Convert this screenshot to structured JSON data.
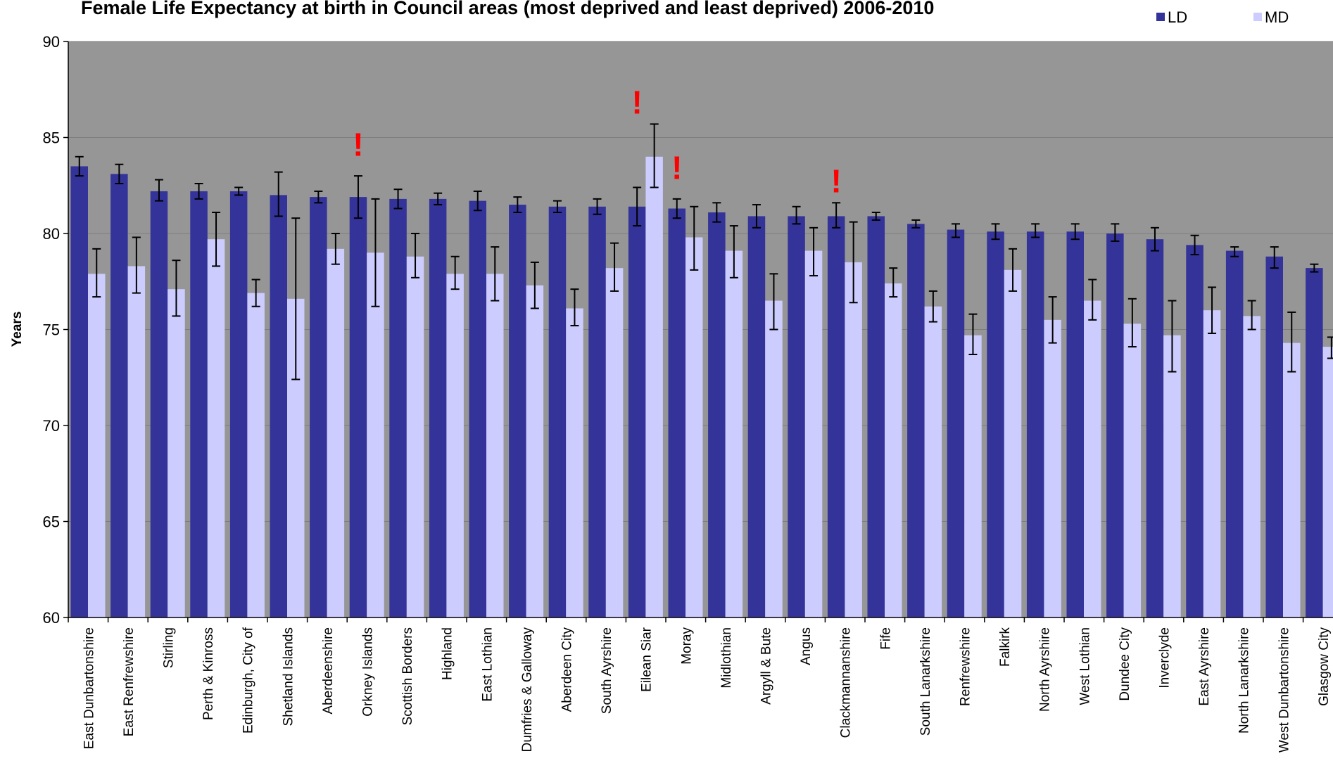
{
  "chart_data": {
    "type": "bar",
    "title": "Female Life Expectancy at birth in Council areas (most deprived and least deprived) 2006-2010",
    "ylabel": "Years",
    "xlabel": "",
    "ylim": [
      60,
      90
    ],
    "yticks": [
      60,
      65,
      70,
      75,
      80,
      85,
      90
    ],
    "grid": true,
    "legend_position": "top-right",
    "colors": {
      "plot_bg": "#969696",
      "LD": "#333399",
      "MD": "#ccccff",
      "grid": "#7f7f7f",
      "flag": "#ff0000"
    },
    "flag_symbol": "!",
    "categories": [
      "East Dunbartonshire",
      "East Renfrewshire",
      "Stirling",
      "Perth & Kinross",
      "Edinburgh, City of",
      "Shetland Islands",
      "Aberdeenshire",
      "Orkney Islands",
      "Scottish Borders",
      "Highland",
      "East Lothian",
      "Dumfries & Galloway",
      "Aberdeen City",
      "South Ayrshire",
      "Eilean Siar",
      "Moray",
      "Midlothian",
      "Argyll & Bute",
      "Angus",
      "Clackmannanshire",
      "Fife",
      "South Lanarkshire",
      "Renfrewshire",
      "Falkirk",
      "North Ayrshire",
      "West Lothian",
      "Dundee City",
      "Inverclyde",
      "East Ayrshire",
      "North Lanarkshire",
      "West Dunbartonshire",
      "Glasgow City"
    ],
    "series": [
      {
        "name": "LD",
        "values": [
          83.5,
          83.1,
          82.2,
          82.2,
          82.2,
          82.0,
          81.9,
          81.9,
          81.8,
          81.8,
          81.7,
          81.5,
          81.4,
          81.4,
          81.4,
          81.3,
          81.1,
          80.9,
          80.9,
          80.9,
          80.9,
          80.5,
          80.2,
          80.1,
          80.1,
          80.1,
          80.0,
          79.7,
          79.4,
          79.1,
          78.8,
          78.2
        ],
        "ci_low": [
          83.0,
          82.6,
          81.7,
          81.8,
          82.0,
          80.9,
          81.6,
          80.8,
          81.3,
          81.5,
          81.2,
          81.1,
          81.1,
          81.0,
          80.4,
          80.8,
          80.6,
          80.3,
          80.5,
          80.3,
          80.7,
          80.3,
          79.8,
          79.7,
          79.8,
          79.7,
          79.6,
          79.1,
          78.9,
          78.8,
          78.2,
          78.0
        ],
        "ci_high": [
          84.0,
          83.6,
          82.8,
          82.6,
          82.4,
          83.2,
          82.2,
          83.0,
          82.3,
          82.1,
          82.2,
          81.9,
          81.7,
          81.8,
          82.4,
          81.8,
          81.6,
          81.5,
          81.4,
          81.6,
          81.1,
          80.7,
          80.5,
          80.5,
          80.5,
          80.5,
          80.5,
          80.3,
          79.9,
          79.3,
          79.3,
          78.4
        ]
      },
      {
        "name": "MD",
        "values": [
          77.9,
          78.3,
          77.1,
          79.7,
          76.9,
          76.6,
          79.2,
          79.0,
          78.8,
          77.9,
          77.9,
          77.3,
          76.1,
          78.2,
          84.0,
          79.8,
          79.1,
          76.5,
          79.1,
          78.5,
          77.4,
          76.2,
          74.7,
          78.1,
          75.5,
          76.5,
          75.3,
          74.7,
          76.0,
          75.7,
          74.3,
          74.1
        ],
        "ci_low": [
          76.7,
          76.9,
          75.7,
          78.3,
          76.2,
          72.4,
          78.4,
          76.2,
          77.7,
          77.1,
          76.5,
          76.1,
          75.2,
          77.0,
          82.4,
          78.1,
          77.7,
          75.0,
          77.8,
          76.4,
          76.7,
          75.4,
          73.7,
          77.0,
          74.3,
          75.5,
          74.1,
          72.8,
          74.8,
          75.0,
          72.8,
          73.5
        ],
        "ci_high": [
          79.2,
          79.8,
          78.6,
          81.1,
          77.6,
          80.8,
          80.0,
          81.8,
          80.0,
          78.8,
          79.3,
          78.5,
          77.1,
          79.5,
          85.7,
          81.4,
          80.4,
          77.9,
          80.3,
          80.6,
          78.2,
          77.0,
          75.8,
          79.2,
          76.7,
          77.6,
          76.6,
          76.5,
          77.2,
          76.5,
          75.9,
          74.6
        ]
      }
    ],
    "flags": [
      {
        "category": "Orkney Islands",
        "value": 84.7
      },
      {
        "category": "Eilean Siar",
        "value": 86.9
      },
      {
        "category": "Moray",
        "value": 83.5
      },
      {
        "category": "Clackmannanshire",
        "value": 82.8
      }
    ]
  }
}
